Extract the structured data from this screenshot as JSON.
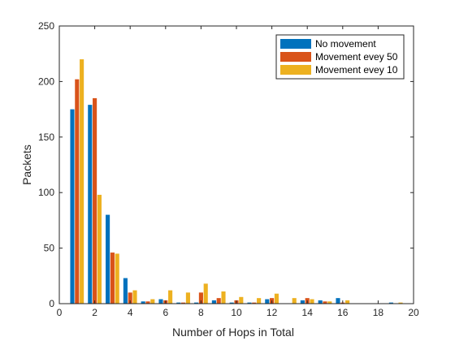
{
  "chart_data": {
    "type": "bar",
    "title": "",
    "xlabel": "Number of Hops in Total",
    "ylabel": "Packets",
    "xlim": [
      0,
      20
    ],
    "ylim": [
      0,
      250
    ],
    "xticks": [
      0,
      2,
      4,
      6,
      8,
      10,
      12,
      14,
      16,
      18,
      20
    ],
    "yticks": [
      0,
      50,
      100,
      150,
      200,
      250
    ],
    "x": [
      1,
      2,
      3,
      4,
      5,
      6,
      7,
      8,
      9,
      10,
      11,
      12,
      13,
      14,
      15,
      16,
      17,
      18,
      19
    ],
    "legend_position": "top-right",
    "grid": false,
    "series": [
      {
        "name": "No movement",
        "color": "#0072BD",
        "values": [
          175,
          179,
          80,
          23,
          2,
          4,
          1,
          1,
          3,
          1,
          1,
          4,
          0,
          3,
          3,
          5,
          0,
          0,
          1
        ]
      },
      {
        "name": "Movement evey 50",
        "color": "#D95319",
        "values": [
          202,
          185,
          46,
          10,
          2,
          3,
          1,
          10,
          5,
          3,
          1,
          5,
          0,
          5,
          2,
          1,
          0,
          0,
          0
        ]
      },
      {
        "name": "Movement evey 10",
        "color": "#EDB120",
        "values": [
          220,
          98,
          45,
          12,
          4,
          12,
          10,
          18,
          11,
          6,
          5,
          9,
          5,
          4,
          2,
          3,
          0,
          0,
          1
        ]
      }
    ]
  }
}
